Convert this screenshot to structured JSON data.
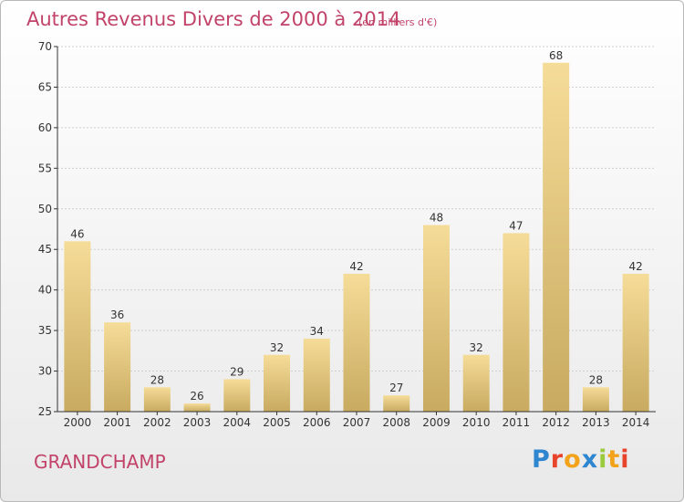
{
  "header": {
    "title": "Autres Revenus Divers de 2000 à 2014",
    "subtitle": "(en milliers d'€)"
  },
  "footer": {
    "place": "GRANDCHAMP",
    "logo_letters": [
      {
        "ch": "P",
        "color": "#2e86d1"
      },
      {
        "ch": "r",
        "color": "#e8442c"
      },
      {
        "ch": "o",
        "color": "#f2a21b"
      },
      {
        "ch": "x",
        "color": "#2e86d1"
      },
      {
        "ch": "i",
        "color": "#9acb3c"
      },
      {
        "ch": "t",
        "color": "#f2a21b"
      },
      {
        "ch": "i",
        "color": "#e8442c"
      }
    ]
  },
  "chart_data": {
    "type": "bar",
    "categories": [
      "2000",
      "2001",
      "2002",
      "2003",
      "2004",
      "2005",
      "2006",
      "2007",
      "2008",
      "2009",
      "2010",
      "2011",
      "2012",
      "2013",
      "2014"
    ],
    "values": [
      46,
      36,
      28,
      26,
      29,
      32,
      34,
      42,
      27,
      48,
      32,
      47,
      68,
      28,
      42
    ],
    "ylim": [
      25,
      70
    ],
    "yticks": [
      25,
      30,
      35,
      40,
      45,
      50,
      55,
      60,
      65,
      70
    ],
    "grid": true,
    "data_labels": true,
    "colors": {
      "bar_top": "#f5dc98",
      "bar_bottom": "#c8aa60",
      "grid": "#d0d0d0",
      "axis": "#333333"
    }
  }
}
